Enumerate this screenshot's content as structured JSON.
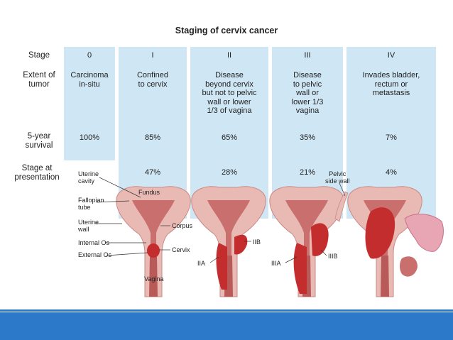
{
  "title": "Staging of cervix cancer",
  "row_labels": {
    "stage": "Stage",
    "extent": [
      "Extent of",
      "tumor"
    ],
    "survival": [
      "5-year",
      "survival"
    ],
    "presentation": [
      "Stage at",
      "presentation"
    ]
  },
  "stages": [
    {
      "stage": "0",
      "extent": [
        "Carcinoma",
        "in-situ"
      ],
      "survival": "100%",
      "presentation": ""
    },
    {
      "stage": "I",
      "extent": [
        "Confined",
        "to cervix"
      ],
      "survival": "85%",
      "presentation": "47%"
    },
    {
      "stage": "II",
      "extent": [
        "Disease",
        "beyond cervix",
        "but not to pelvic",
        "wall or lower",
        "1/3 of vagina"
      ],
      "survival": "65%",
      "presentation": "28%"
    },
    {
      "stage": "III",
      "extent": [
        "Disease",
        "to pelvic",
        "wall or",
        "lower 1/3",
        "vagina"
      ],
      "survival": "35%",
      "presentation": "21%"
    },
    {
      "stage": "IV",
      "extent": [
        "Invades bladder,",
        "rectum or",
        "metastasis"
      ],
      "survival": "7%",
      "presentation": "4%"
    }
  ],
  "anatomy": {
    "uterine_cavity": [
      "Uterine",
      "cavity"
    ],
    "fallopian_tube": [
      "Fallopian",
      "tube"
    ],
    "uterine_wall": [
      "Uterine",
      "wall"
    ],
    "internal_os": "Internal Os",
    "external_os": "External Os",
    "fundus": "Fundus",
    "corpus": "Corpus",
    "cervix": "Cervix",
    "vagina": "Vagina",
    "pelvic_side_wall": [
      "Pelvic",
      "side wall"
    ],
    "iia": "IIA",
    "iib": "IIB",
    "iiia": "IIIA",
    "iiib": "IIIB"
  },
  "colors": {
    "column_bg": "#cfe7f4",
    "tissue": "#e9b9b4",
    "tissue_dark": "#c9706e",
    "tumor": "#c42d2d",
    "footer_bar": "#2c78c9"
  }
}
